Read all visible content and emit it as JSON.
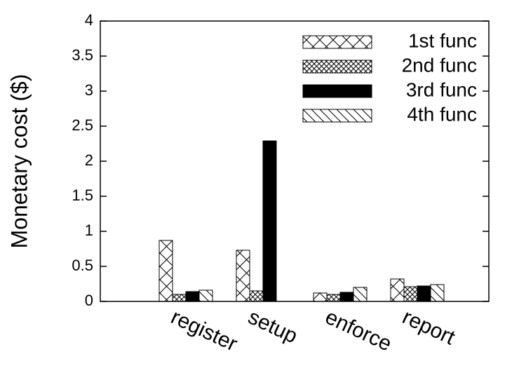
{
  "chart_data": {
    "type": "bar",
    "y_label": "Monetary cost ($)",
    "categories": [
      "register",
      "setup",
      "enforce",
      "report"
    ],
    "series": [
      {
        "name": "1st func",
        "color": "#000000",
        "pattern": "crosshatch",
        "values": [
          0.87,
          0.73,
          0.12,
          0.32
        ]
      },
      {
        "name": "2nd func",
        "color": "#000000",
        "pattern": "fine-crosshatch",
        "values": [
          0.1,
          0.15,
          0.1,
          0.21
        ]
      },
      {
        "name": "3rd func",
        "color": "#000000",
        "pattern": "solid",
        "values": [
          0.14,
          2.29,
          0.13,
          0.22
        ]
      },
      {
        "name": "4th func",
        "color": "#000000",
        "pattern": "diagonal",
        "values": [
          0.16,
          0,
          0.2,
          0.24
        ]
      }
    ],
    "ylim": [
      0,
      4
    ],
    "yticks": [
      0,
      0.5,
      1,
      1.5,
      2,
      2.5,
      3,
      3.5,
      4
    ],
    "legend": "top-right"
  }
}
